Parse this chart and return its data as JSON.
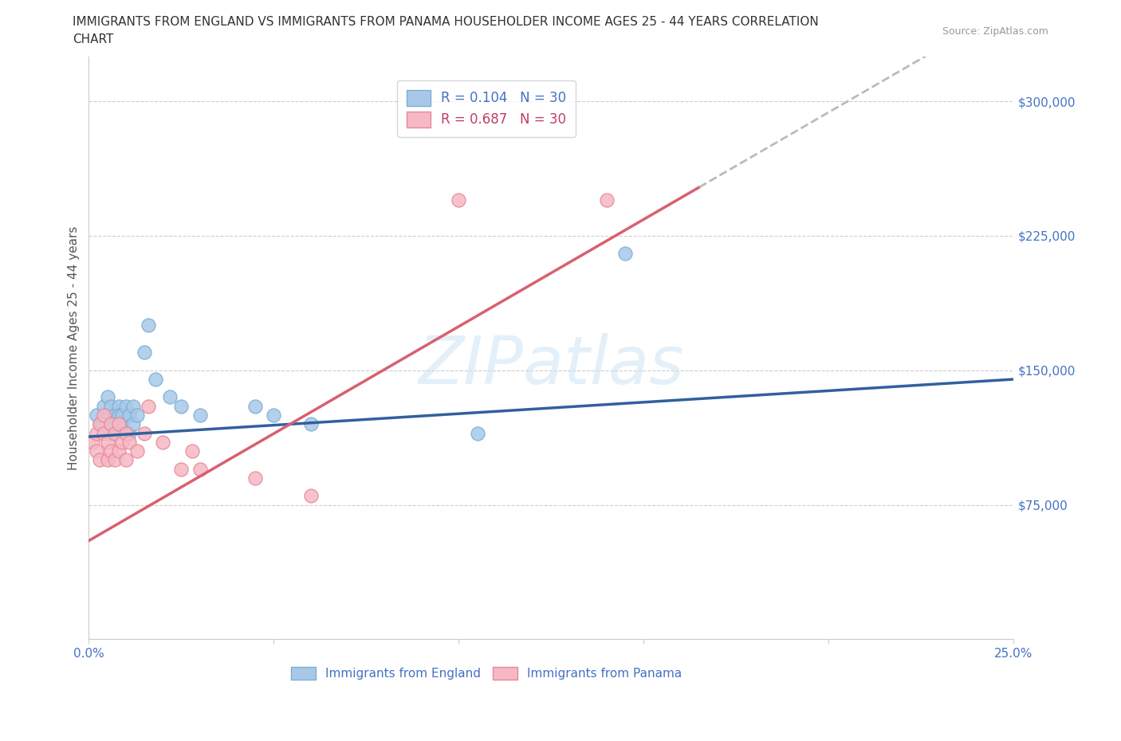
{
  "title_line1": "IMMIGRANTS FROM ENGLAND VS IMMIGRANTS FROM PANAMA HOUSEHOLDER INCOME AGES 25 - 44 YEARS CORRELATION",
  "title_line2": "CHART",
  "source_text": "Source: ZipAtlas.com",
  "ylabel": "Householder Income Ages 25 - 44 years",
  "xlim": [
    0.0,
    0.25
  ],
  "ylim": [
    0,
    325000
  ],
  "yticks": [
    75000,
    150000,
    225000,
    300000
  ],
  "ytick_labels": [
    "$75,000",
    "$150,000",
    "$225,000",
    "$300,000"
  ],
  "xticks": [
    0.0,
    0.05,
    0.1,
    0.15,
    0.2,
    0.25
  ],
  "xtick_labels": [
    "0.0%",
    "",
    "",
    "",
    "",
    "25.0%"
  ],
  "england_color": "#a8c8e8",
  "england_edge_color": "#7aafd4",
  "panama_color": "#f5b8c4",
  "panama_edge_color": "#e88898",
  "england_line_color": "#3060a0",
  "panama_line_color": "#d86070",
  "dashed_line_color": "#bbbbbb",
  "england_r": 0.104,
  "england_n": 30,
  "panama_r": 0.687,
  "panama_n": 30,
  "england_scatter_x": [
    0.002,
    0.003,
    0.004,
    0.005,
    0.005,
    0.006,
    0.006,
    0.007,
    0.007,
    0.008,
    0.008,
    0.009,
    0.009,
    0.01,
    0.011,
    0.011,
    0.012,
    0.012,
    0.013,
    0.015,
    0.016,
    0.018,
    0.022,
    0.025,
    0.03,
    0.045,
    0.05,
    0.06,
    0.105,
    0.145
  ],
  "england_scatter_y": [
    125000,
    120000,
    130000,
    125000,
    135000,
    115000,
    130000,
    125000,
    120000,
    130000,
    125000,
    120000,
    125000,
    130000,
    115000,
    125000,
    130000,
    120000,
    125000,
    160000,
    175000,
    145000,
    135000,
    130000,
    125000,
    130000,
    125000,
    120000,
    115000,
    215000
  ],
  "panama_scatter_x": [
    0.001,
    0.002,
    0.002,
    0.003,
    0.003,
    0.004,
    0.004,
    0.005,
    0.005,
    0.006,
    0.006,
    0.007,
    0.007,
    0.008,
    0.008,
    0.009,
    0.01,
    0.01,
    0.011,
    0.013,
    0.015,
    0.016,
    0.02,
    0.025,
    0.028,
    0.03,
    0.045,
    0.06,
    0.1,
    0.14
  ],
  "panama_scatter_y": [
    110000,
    115000,
    105000,
    120000,
    100000,
    125000,
    115000,
    110000,
    100000,
    120000,
    105000,
    115000,
    100000,
    120000,
    105000,
    110000,
    100000,
    115000,
    110000,
    105000,
    115000,
    130000,
    110000,
    95000,
    105000,
    95000,
    90000,
    80000,
    245000,
    245000
  ],
  "watermark": "ZIPatlas",
  "background_color": "#ffffff",
  "grid_color": "#c8c8c8",
  "legend_england_label": "Immigrants from England",
  "legend_panama_label": "Immigrants from Panama"
}
